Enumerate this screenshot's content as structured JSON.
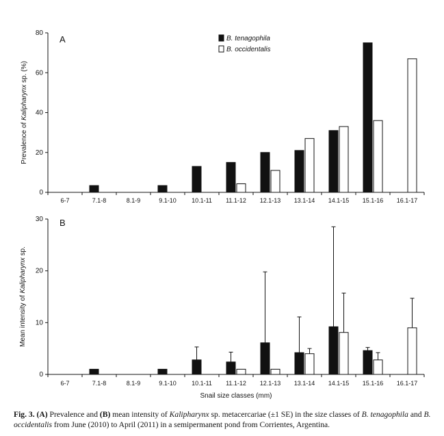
{
  "chart_data": [
    {
      "type": "bar",
      "panel_label": "A",
      "ylabel_prefix": "Prevalence of ",
      "ylabel_italic": "Kalipharynx",
      "ylabel_suffix": " sp. (%)",
      "ylim": [
        0,
        80
      ],
      "yticks": [
        0,
        20,
        40,
        60,
        80
      ],
      "categories": [
        "6-7",
        "7.1-8",
        "8.1-9",
        "9.1-10",
        "10.1-11",
        "11.1-12",
        "12.1-13",
        "13.1-14",
        "14.1-15",
        "15.1-16",
        "16.1-17"
      ],
      "series": [
        {
          "name": "B. tenagophila",
          "color": "#111111",
          "values": [
            0,
            3.4,
            0,
            3.4,
            13,
            15,
            20,
            21,
            31,
            75,
            0
          ]
        },
        {
          "name": "B. occidentalis",
          "color": "#ffffff",
          "values": [
            0,
            0,
            0,
            0,
            0,
            4.3,
            11,
            27,
            33,
            36,
            67
          ]
        }
      ],
      "legend_position": "top-center"
    },
    {
      "type": "bar",
      "panel_label": "B",
      "ylabel_prefix": "Mean intensity of ",
      "ylabel_italic": "Kalipharynx",
      "ylabel_suffix": " sp.",
      "xlabel": "Snail size classes (mm)",
      "ylim": [
        0,
        30
      ],
      "yticks": [
        0,
        10,
        20,
        30
      ],
      "categories": [
        "6-7",
        "7.1-8",
        "8.1-9",
        "9.1-10",
        "10.1-11",
        "11.1-12",
        "12.1-13",
        "13.1-14",
        "14.1-15",
        "15.1-16",
        "16.1-17"
      ],
      "series": [
        {
          "name": "B. tenagophila",
          "color": "#111111",
          "values": [
            0,
            1,
            0,
            1,
            2.8,
            2.4,
            6.1,
            4.2,
            9.2,
            4.6,
            0
          ],
          "errors": [
            0,
            0,
            0,
            0,
            2.5,
            1.9,
            13.7,
            6.9,
            19.3,
            0.6,
            0
          ]
        },
        {
          "name": "B. occidentalis",
          "color": "#ffffff",
          "values": [
            0,
            0,
            0,
            0,
            0,
            1,
            1,
            4,
            8.1,
            2.8,
            9
          ],
          "errors": [
            0,
            0,
            0,
            0,
            0,
            0,
            0,
            1,
            7.6,
            1.4,
            5.7
          ]
        }
      ]
    }
  ],
  "caption": {
    "fig_label": "Fig. 3.",
    "parts": [
      {
        "t": "(A)",
        "b": true
      },
      {
        "t": " Prevalence and "
      },
      {
        "t": "(B)",
        "b": true
      },
      {
        "t": " mean intensity of "
      },
      {
        "t": "Kalipharynx",
        "i": true
      },
      {
        "t": " sp. metacercariae (±1 SE) in the size classes of "
      },
      {
        "t": "B. tenagophila",
        "i": true
      },
      {
        "t": " and "
      },
      {
        "t": "B. occidentalis",
        "i": true
      },
      {
        "t": " from June (2010) to April (2011) in a semipermanent pond from Corrientes, Argentina."
      }
    ]
  }
}
